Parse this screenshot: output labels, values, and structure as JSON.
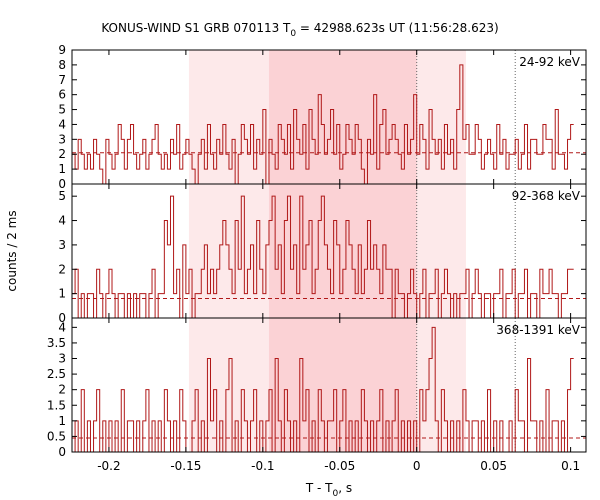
{
  "title": {
    "prefix": "KONUS-WIND S1 GRB 070113 T",
    "sub": "0",
    "suffix": " = 42988.623s UT (11:56:28.623)"
  },
  "x_axis_label": {
    "prefix": "T - T",
    "sub": "0",
    "suffix": ", s"
  },
  "y_axis_label": "counts / 2 ms",
  "colors": {
    "histogram": "#b01818",
    "background_line": "#b01818",
    "shade_light": "#fde9ea",
    "shade_dark": "#fbd2d5",
    "axis": "#000000",
    "dotted_line": "#666666"
  },
  "chart_data": {
    "type": "histogram",
    "xlim": [
      -0.224,
      0.11
    ],
    "bin_width": 0.002,
    "x_start": -0.224,
    "x_ticks": [
      -0.2,
      -0.15,
      -0.1,
      -0.05,
      0,
      0.05,
      0.1
    ],
    "x_tick_labels": [
      "-0.2",
      "-0.15",
      "-0.1",
      "-0.05",
      "0",
      "0.05",
      "0.1"
    ],
    "shaded_intervals": [
      {
        "kind": "light",
        "range": [
          -0.148,
          0.032
        ]
      },
      {
        "kind": "dark",
        "range": [
          -0.096,
          0.0
        ]
      }
    ],
    "vertical_dotted_lines": [
      0.0,
      0.064
    ],
    "panels": [
      {
        "band": "24-92 keV",
        "ylim": [
          0,
          9
        ],
        "y_ticks": [
          0,
          1,
          2,
          3,
          4,
          5,
          6,
          7,
          8,
          9
        ],
        "y_tick_labels": [
          "0",
          "1",
          "2",
          "3",
          "4",
          "5",
          "6",
          "7",
          "8",
          "9"
        ],
        "background": 2.1,
        "counts": [
          2,
          1,
          3,
          2,
          1,
          2,
          1,
          3,
          2,
          1,
          0,
          3,
          2,
          1,
          2,
          4,
          3,
          1,
          3,
          4,
          2,
          1,
          2,
          3,
          1,
          2,
          3,
          4,
          2,
          1,
          2,
          1,
          3,
          2,
          4,
          1,
          2,
          3,
          2,
          1,
          0,
          2,
          3,
          1,
          4,
          2,
          1,
          3,
          2,
          4,
          2,
          1,
          3,
          0,
          2,
          4,
          3,
          2,
          4,
          1,
          3,
          2,
          5,
          0,
          3,
          2,
          1,
          4,
          3,
          2,
          4,
          1,
          5,
          3,
          2,
          4,
          1,
          5,
          3,
          2,
          6,
          4,
          2,
          3,
          5,
          2,
          4,
          1,
          2,
          4,
          3,
          2,
          4,
          3,
          1,
          0,
          3,
          2,
          6,
          1,
          4,
          5,
          2,
          3,
          4,
          3,
          2,
          1,
          4,
          2,
          3,
          6,
          2,
          4,
          3,
          1,
          5,
          3,
          2,
          3,
          1,
          4,
          2,
          3,
          1,
          5,
          8,
          3,
          4,
          2,
          2,
          4,
          3,
          1,
          2,
          3,
          2,
          1,
          4,
          2,
          3,
          1,
          2,
          2,
          3,
          1,
          2,
          4,
          1,
          3,
          3,
          2,
          2,
          4,
          3,
          3,
          1,
          5,
          2,
          2,
          1,
          3,
          4
        ]
      },
      {
        "band": "92-368 keV",
        "ylim": [
          0,
          5.5
        ],
        "y_ticks": [
          0,
          1,
          2,
          3,
          4,
          5
        ],
        "y_tick_labels": [
          "0",
          "1",
          "2",
          "3",
          "4",
          "5"
        ],
        "background": 0.8,
        "counts": [
          1,
          2,
          0,
          1,
          0,
          1,
          1,
          0,
          2,
          1,
          0,
          1,
          2,
          1,
          0,
          1,
          1,
          0,
          1,
          0,
          1,
          0,
          1,
          1,
          0,
          1,
          2,
          0,
          1,
          1,
          4,
          3,
          5,
          1,
          2,
          0,
          3,
          1,
          2,
          0,
          1,
          1,
          2,
          3,
          1,
          2,
          1,
          2,
          3,
          4,
          3,
          2,
          1,
          4,
          2,
          5,
          1,
          2,
          3,
          1,
          4,
          2,
          1,
          3,
          4,
          5,
          2,
          3,
          1,
          4,
          5,
          2,
          3,
          1,
          5,
          2,
          3,
          4,
          1,
          2,
          4,
          5,
          3,
          2,
          1,
          4,
          3,
          1,
          2,
          4,
          3,
          2,
          1,
          3,
          1,
          2,
          4,
          2,
          3,
          2,
          1,
          3,
          2,
          2,
          0,
          2,
          1,
          1,
          0,
          1,
          2,
          1,
          0,
          1,
          2,
          0,
          1,
          1,
          2,
          0,
          1,
          2,
          1,
          0,
          1,
          0,
          1,
          1,
          2,
          0,
          1,
          2,
          1,
          0,
          1,
          1,
          0,
          1,
          1,
          2,
          0,
          1,
          1,
          2,
          0,
          1,
          1,
          2,
          0,
          1,
          1,
          0,
          2,
          1,
          1,
          2,
          1,
          1,
          0,
          1,
          1,
          2,
          2
        ]
      },
      {
        "band": "368-1391 keV",
        "ylim": [
          0,
          4.3
        ],
        "y_ticks": [
          0,
          0.5,
          1,
          1.5,
          2,
          2.5,
          3,
          3.5,
          4
        ],
        "y_tick_labels": [
          "0",
          "0.5",
          "1",
          "1.5",
          "2",
          "2.5",
          "3",
          "3.5",
          "4"
        ],
        "background": 0.45,
        "counts": [
          0,
          1,
          0,
          2,
          0,
          1,
          0,
          1,
          2,
          0,
          1,
          0,
          1,
          0,
          1,
          0,
          2,
          0,
          1,
          1,
          0,
          1,
          0,
          1,
          2,
          0,
          1,
          0,
          1,
          0,
          2,
          1,
          0,
          1,
          0,
          2,
          1,
          0,
          0,
          1,
          2,
          0,
          1,
          0,
          3,
          1,
          2,
          0,
          1,
          0,
          2,
          3,
          0,
          1,
          0,
          2,
          1,
          0,
          1,
          2,
          0,
          1,
          0,
          1,
          2,
          0,
          3,
          1,
          0,
          2,
          1,
          0,
          1,
          0,
          3,
          1,
          2,
          0,
          1,
          0,
          2,
          1,
          0,
          1,
          1,
          2,
          0,
          1,
          2,
          0,
          1,
          0,
          1,
          0,
          2,
          1,
          0,
          1,
          0,
          1,
          2,
          0,
          1,
          0,
          1,
          2,
          0,
          1,
          0,
          1,
          0,
          1,
          0,
          2,
          1,
          2,
          3,
          4,
          1,
          0,
          2,
          1,
          0,
          1,
          0,
          1,
          0,
          2,
          1,
          0,
          1,
          1,
          0,
          1,
          0,
          2,
          0,
          1,
          0,
          1,
          0,
          0,
          1,
          0,
          2,
          1,
          1,
          0,
          3,
          1,
          1,
          0,
          1,
          0,
          2,
          0,
          1,
          1,
          0,
          1,
          0,
          2,
          3
        ]
      }
    ]
  }
}
